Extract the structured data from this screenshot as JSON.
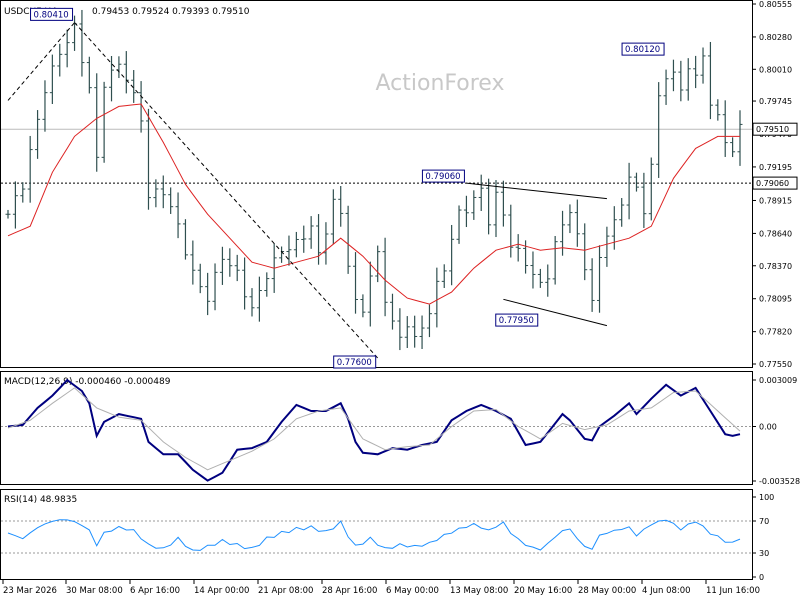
{
  "header": {
    "symbol": "USDCHF,H4",
    "ohlc": "0.79453 0.79524 0.79393 0.79510"
  },
  "watermark": "ActionForex",
  "chart_data": [
    {
      "panel": "price",
      "type": "bar",
      "ylim": [
        0.7755,
        0.80555
      ],
      "price_ticks": [
        "0.80555",
        "0.80280",
        "0.80010",
        "0.79745",
        "0.79470",
        "0.79195",
        "0.78915",
        "0.78640",
        "0.78370",
        "0.78095",
        "0.77820",
        "0.77550"
      ],
      "tick_values": [
        0.80555,
        0.8028,
        0.8001,
        0.79745,
        0.7947,
        0.79195,
        0.78915,
        0.7864,
        0.7837,
        0.78095,
        0.7782,
        0.7755
      ],
      "current_price": {
        "label": "0.79510",
        "value": 0.7951
      },
      "level_line": {
        "label": "0.79060",
        "value": 0.7906
      },
      "annotations": [
        {
          "label": "0.80410",
          "x": 9,
          "value": 0.8041
        },
        {
          "label": "0.80120",
          "x": 89,
          "value": 0.8012
        },
        {
          "label": "0.79060",
          "x": 62,
          "value": 0.7906
        },
        {
          "label": "0.77950",
          "x": 73,
          "value": 0.7795
        },
        {
          "label": "0.77600",
          "x": 50,
          "value": 0.776
        }
      ],
      "bar_count": 100,
      "close_waypoints": [
        [
          0,
          0.788
        ],
        [
          2,
          0.7905
        ],
        [
          5,
          0.7985
        ],
        [
          7,
          0.8015
        ],
        [
          9,
          0.8035
        ],
        [
          11,
          0.7985
        ],
        [
          12,
          0.7925
        ],
        [
          13,
          0.799
        ],
        [
          15,
          0.8005
        ],
        [
          16,
          0.7995
        ],
        [
          18,
          0.796
        ],
        [
          19,
          0.7895
        ],
        [
          21,
          0.79
        ],
        [
          23,
          0.787
        ],
        [
          25,
          0.783
        ],
        [
          27,
          0.781
        ],
        [
          29,
          0.7845
        ],
        [
          31,
          0.783
        ],
        [
          33,
          0.78
        ],
        [
          35,
          0.783
        ],
        [
          37,
          0.785
        ],
        [
          39,
          0.7855
        ],
        [
          41,
          0.787
        ],
        [
          42,
          0.7845
        ],
        [
          44,
          0.789
        ],
        [
          45,
          0.788
        ],
        [
          46,
          0.784
        ],
        [
          47,
          0.7805
        ],
        [
          48,
          0.78
        ],
        [
          49,
          0.783
        ],
        [
          50,
          0.7845
        ],
        [
          51,
          0.781
        ],
        [
          52,
          0.779
        ],
        [
          53,
          0.7775
        ],
        [
          54,
          0.779
        ],
        [
          55,
          0.7775
        ],
        [
          56,
          0.7785
        ],
        [
          57,
          0.78
        ],
        [
          58,
          0.782
        ],
        [
          59,
          0.7835
        ],
        [
          60,
          0.786
        ],
        [
          61,
          0.788
        ],
        [
          62,
          0.7885
        ],
        [
          64,
          0.79
        ],
        [
          65,
          0.7875
        ],
        [
          66,
          0.7895
        ],
        [
          67,
          0.788
        ],
        [
          68,
          0.7855
        ],
        [
          70,
          0.784
        ],
        [
          72,
          0.782
        ],
        [
          73,
          0.783
        ],
        [
          74,
          0.7855
        ],
        [
          75,
          0.787
        ],
        [
          76,
          0.7885
        ],
        [
          77,
          0.786
        ],
        [
          78,
          0.7835
        ],
        [
          79,
          0.781
        ],
        [
          80,
          0.784
        ],
        [
          81,
          0.7865
        ],
        [
          82,
          0.7875
        ],
        [
          83,
          0.7885
        ],
        [
          84,
          0.7915
        ],
        [
          85,
          0.79
        ],
        [
          86,
          0.788
        ],
        [
          87,
          0.7925
        ],
        [
          88,
          0.7975
        ],
        [
          89,
          0.7995
        ],
        [
          90,
          0.8
        ],
        [
          91,
          0.798
        ],
        [
          92,
          0.8005
        ],
        [
          93,
          0.7995
        ],
        [
          94,
          0.801
        ],
        [
          95,
          0.7975
        ],
        [
          96,
          0.796
        ],
        [
          97,
          0.794
        ],
        [
          98,
          0.7935
        ],
        [
          99,
          0.7951
        ]
      ],
      "ma_waypoints": [
        [
          0,
          0.7862
        ],
        [
          3,
          0.787
        ],
        [
          6,
          0.7915
        ],
        [
          9,
          0.7945
        ],
        [
          12,
          0.796
        ],
        [
          15,
          0.797
        ],
        [
          18,
          0.7972
        ],
        [
          21,
          0.794
        ],
        [
          24,
          0.7905
        ],
        [
          27,
          0.788
        ],
        [
          30,
          0.786
        ],
        [
          33,
          0.784
        ],
        [
          36,
          0.7835
        ],
        [
          39,
          0.784
        ],
        [
          42,
          0.7845
        ],
        [
          45,
          0.786
        ],
        [
          48,
          0.7845
        ],
        [
          51,
          0.7825
        ],
        [
          54,
          0.781
        ],
        [
          57,
          0.7805
        ],
        [
          60,
          0.7815
        ],
        [
          63,
          0.7835
        ],
        [
          66,
          0.785
        ],
        [
          69,
          0.7855
        ],
        [
          72,
          0.785
        ],
        [
          75,
          0.7852
        ],
        [
          78,
          0.785
        ],
        [
          81,
          0.7855
        ],
        [
          84,
          0.786
        ],
        [
          87,
          0.787
        ],
        [
          90,
          0.791
        ],
        [
          93,
          0.7935
        ],
        [
          96,
          0.7945
        ],
        [
          99,
          0.7945
        ]
      ],
      "trendlines": [
        {
          "style": "dashed",
          "from": [
            0,
            0.7975
          ],
          "to": [
            9,
            0.804
          ]
        },
        {
          "style": "dashed",
          "from": [
            9,
            0.804
          ],
          "to": [
            50,
            0.776
          ]
        },
        {
          "style": "solid",
          "from": [
            62,
            0.7906
          ],
          "to": [
            81,
            0.7893
          ]
        },
        {
          "style": "solid",
          "from": [
            67,
            0.7809
          ],
          "to": [
            81,
            0.7787
          ]
        }
      ]
    },
    {
      "panel": "macd",
      "type": "line",
      "label": "MACD(12,26,9) -0.000460 -0.000489",
      "ylim": [
        -0.003528,
        0.003009
      ],
      "ticks": [
        "0.003009",
        "0.00",
        "-0.003528"
      ],
      "tick_values": [
        0.003009,
        0.0,
        -0.003528
      ],
      "series": [
        {
          "name": "MACD",
          "waypoints": [
            [
              0,
              0.0
            ],
            [
              2,
              0.0001
            ],
            [
              4,
              0.0012
            ],
            [
              6,
              0.002
            ],
            [
              8,
              0.003
            ],
            [
              10,
              0.0023
            ],
            [
              11,
              0.0015
            ],
            [
              12,
              -0.0006
            ],
            [
              13,
              0.0003
            ],
            [
              15,
              0.0008
            ],
            [
              18,
              0.0005
            ],
            [
              19,
              -0.001
            ],
            [
              21,
              -0.0018
            ],
            [
              23,
              -0.0018
            ],
            [
              25,
              -0.0028
            ],
            [
              27,
              -0.0035
            ],
            [
              29,
              -0.003
            ],
            [
              31,
              -0.0015
            ],
            [
              33,
              -0.0014
            ],
            [
              35,
              -0.001
            ],
            [
              37,
              0.0003
            ],
            [
              39,
              0.0014
            ],
            [
              41,
              0.001
            ],
            [
              43,
              0.001
            ],
            [
              45,
              0.0015
            ],
            [
              46,
              0.0005
            ],
            [
              47,
              -0.001
            ],
            [
              48,
              -0.0017
            ],
            [
              50,
              -0.0018
            ],
            [
              52,
              -0.0014
            ],
            [
              54,
              -0.0015
            ],
            [
              56,
              -0.0012
            ],
            [
              58,
              -0.001
            ],
            [
              60,
              0.0004
            ],
            [
              62,
              0.001
            ],
            [
              64,
              0.0014
            ],
            [
              66,
              0.001
            ],
            [
              68,
              0.0005
            ],
            [
              70,
              -0.0012
            ],
            [
              72,
              -0.001
            ],
            [
              74,
              0.0002
            ],
            [
              75,
              0.0008
            ],
            [
              76,
              0.0004
            ],
            [
              78,
              -0.0008
            ],
            [
              79,
              -0.0009
            ],
            [
              80,
              0.0
            ],
            [
              82,
              0.0007
            ],
            [
              84,
              0.0015
            ],
            [
              85,
              0.0008
            ],
            [
              87,
              0.0018
            ],
            [
              89,
              0.0027
            ],
            [
              91,
              0.002
            ],
            [
              93,
              0.0025
            ],
            [
              95,
              0.001
            ],
            [
              97,
              -0.0005
            ],
            [
              98,
              -0.0006
            ],
            [
              99,
              -0.0005
            ]
          ]
        },
        {
          "name": "Signal",
          "waypoints": [
            [
              0,
              -0.0001
            ],
            [
              3,
              0.0004
            ],
            [
              6,
              0.0015
            ],
            [
              9,
              0.0025
            ],
            [
              12,
              0.0012
            ],
            [
              15,
              0.0006
            ],
            [
              18,
              0.0004
            ],
            [
              21,
              -0.001
            ],
            [
              24,
              -0.002
            ],
            [
              27,
              -0.0028
            ],
            [
              30,
              -0.0022
            ],
            [
              33,
              -0.0016
            ],
            [
              36,
              -0.0008
            ],
            [
              39,
              0.0005
            ],
            [
              42,
              0.001
            ],
            [
              45,
              0.0012
            ],
            [
              48,
              -0.0008
            ],
            [
              51,
              -0.0015
            ],
            [
              54,
              -0.0013
            ],
            [
              57,
              -0.0012
            ],
            [
              60,
              0.0
            ],
            [
              63,
              0.001
            ],
            [
              66,
              0.0011
            ],
            [
              69,
              0.0
            ],
            [
              72,
              -0.0008
            ],
            [
              75,
              0.0002
            ],
            [
              78,
              -0.0002
            ],
            [
              81,
              0.0001
            ],
            [
              84,
              0.001
            ],
            [
              87,
              0.0012
            ],
            [
              90,
              0.0022
            ],
            [
              93,
              0.0023
            ],
            [
              96,
              0.001
            ],
            [
              99,
              -0.0003
            ]
          ]
        }
      ]
    },
    {
      "panel": "rsi",
      "type": "line",
      "label": "RSI(14) 48.9835",
      "ylim": [
        0,
        100
      ],
      "ticks": [
        "100",
        "70",
        "30",
        "0"
      ],
      "tick_values": [
        100,
        70,
        30,
        0
      ],
      "series": [
        {
          "name": "RSI",
          "waypoints": [
            [
              0,
              55
            ],
            [
              2,
              48
            ],
            [
              4,
              62
            ],
            [
              6,
              70
            ],
            [
              8,
              72
            ],
            [
              10,
              65
            ],
            [
              11,
              58
            ],
            [
              12,
              40
            ],
            [
              13,
              55
            ],
            [
              15,
              62
            ],
            [
              17,
              58
            ],
            [
              19,
              40
            ],
            [
              21,
              35
            ],
            [
              23,
              48
            ],
            [
              25,
              32
            ],
            [
              27,
              38
            ],
            [
              29,
              45
            ],
            [
              31,
              40
            ],
            [
              33,
              35
            ],
            [
              35,
              48
            ],
            [
              37,
              55
            ],
            [
              39,
              60
            ],
            [
              41,
              62
            ],
            [
              43,
              56
            ],
            [
              45,
              68
            ],
            [
              46,
              52
            ],
            [
              47,
              38
            ],
            [
              49,
              48
            ],
            [
              51,
              35
            ],
            [
              53,
              40
            ],
            [
              55,
              38
            ],
            [
              57,
              42
            ],
            [
              59,
              52
            ],
            [
              61,
              60
            ],
            [
              63,
              66
            ],
            [
              65,
              58
            ],
            [
              67,
              68
            ],
            [
              68,
              55
            ],
            [
              70,
              40
            ],
            [
              72,
              34
            ],
            [
              74,
              50
            ],
            [
              75,
              58
            ],
            [
              76,
              60
            ],
            [
              77,
              48
            ],
            [
              78,
              38
            ],
            [
              79,
              35
            ],
            [
              80,
              52
            ],
            [
              82,
              58
            ],
            [
              84,
              62
            ],
            [
              85,
              52
            ],
            [
              87,
              66
            ],
            [
              89,
              72
            ],
            [
              91,
              60
            ],
            [
              93,
              70
            ],
            [
              95,
              55
            ],
            [
              97,
              45
            ],
            [
              98,
              42
            ],
            [
              99,
              49
            ]
          ]
        }
      ]
    }
  ],
  "x_axis": {
    "labels": [
      "23 Mar 2026",
      "30 Mar 08:00",
      "6 Apr 16:00",
      "14 Apr 00:00",
      "21 Apr 08:00",
      "28 Apr 16:00",
      "6 May 00:00",
      "13 May 08:00",
      "20 May 16:00",
      "28 May 00:00",
      "4 Jun 08:00",
      "11 Jun 16:00"
    ],
    "label_bars": [
      0,
      9.4,
      19,
      28.6,
      38.2,
      47.8,
      57.4,
      67,
      76.6,
      86.2,
      95.8,
      105.4
    ]
  },
  "colors": {
    "bars": "#2f4f4f",
    "ma": "#dd2222",
    "macd": "#00007f",
    "signal": "#b0b0b0",
    "rsi": "#1e90ff",
    "grid": "#999999",
    "watermark": "#c8c8c8"
  }
}
